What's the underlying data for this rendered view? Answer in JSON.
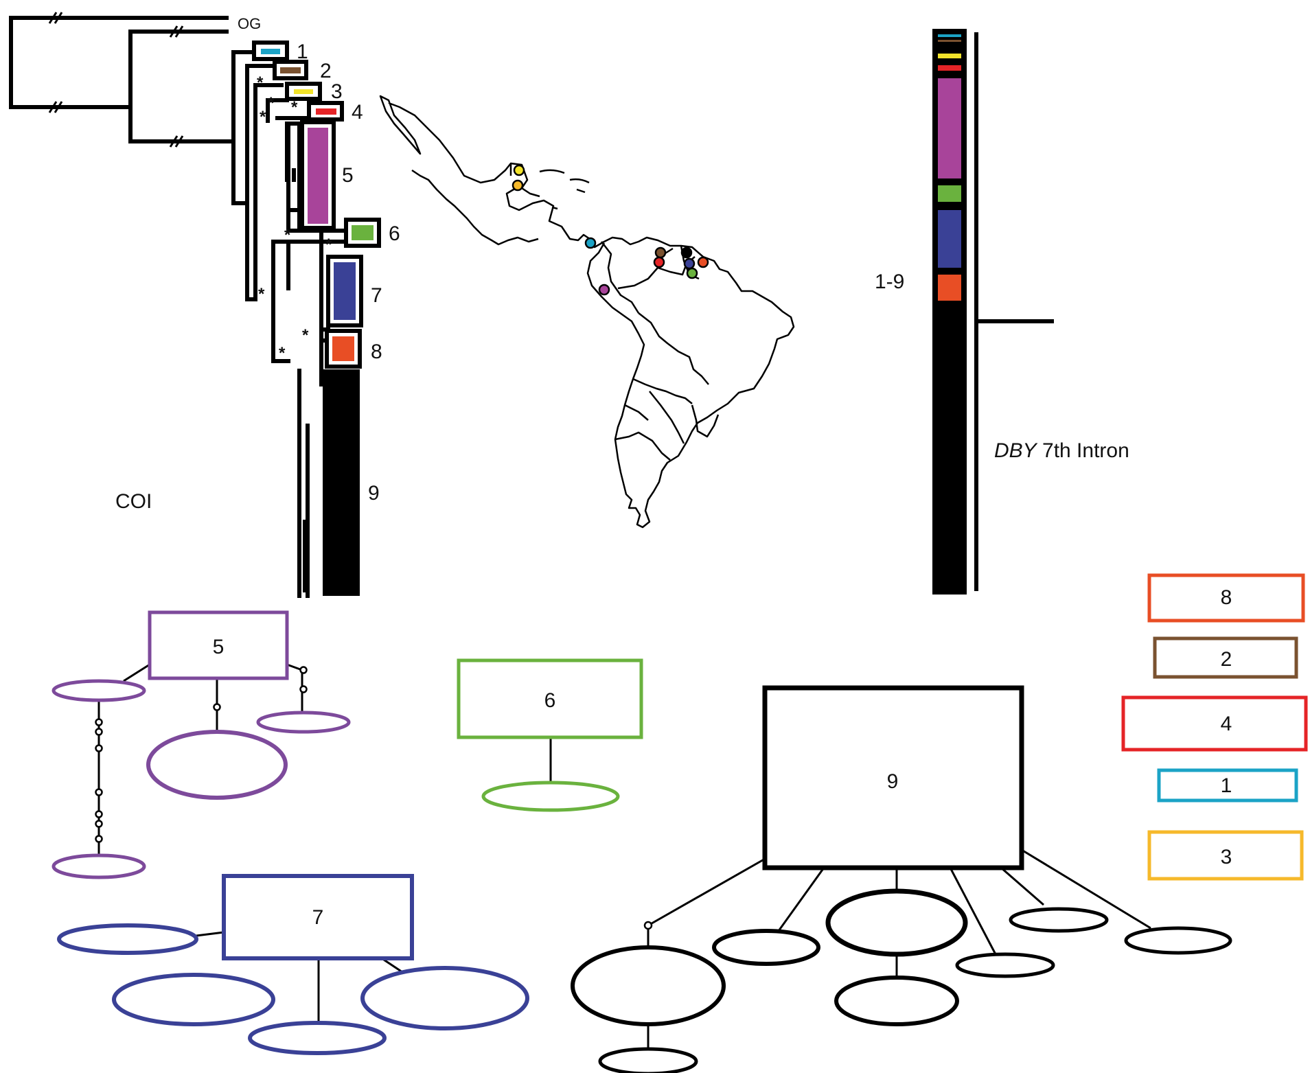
{
  "colors": {
    "c1": "#1ba3c6",
    "c2": "#7a5230",
    "c3": "#f6b92b",
    "c3_bar": "#f2e32b",
    "c4": "#e52427",
    "c5": "#a8449a",
    "c5_net": "#7d4a9b",
    "c6": "#6ab23e",
    "c7": "#3a4196",
    "c8": "#e84e25",
    "c9": "#000000"
  },
  "tree": {
    "outgroup_label": "OG",
    "marker_label": "COI",
    "clades": [
      "1",
      "2",
      "3",
      "4",
      "5",
      "6",
      "7",
      "8",
      "9"
    ],
    "support_symbol": "*"
  },
  "dby": {
    "marker_label_italic": "DBY",
    "marker_label_rest": " 7th Intron",
    "clade_range_label": "1-9"
  },
  "networks": {
    "clade5": "5",
    "clade6": "6",
    "clade7": "7",
    "clade9": "9"
  },
  "legend": {
    "items": [
      "8",
      "2",
      "4",
      "1",
      "3"
    ]
  }
}
